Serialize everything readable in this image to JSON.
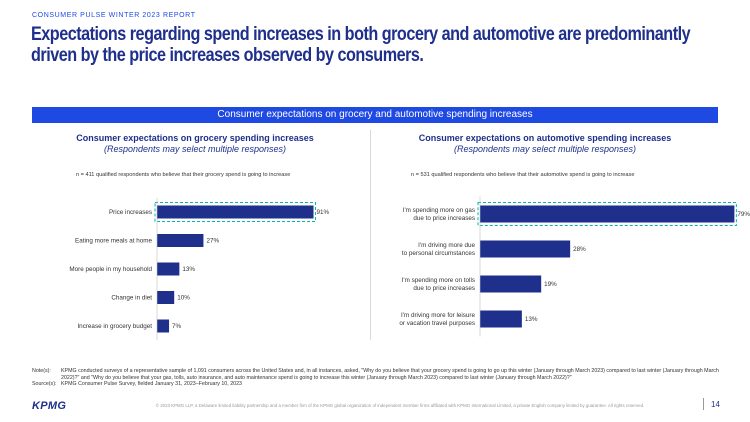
{
  "header": {
    "report_label": "CONSUMER PULSE WINTER 2023 REPORT",
    "title_line1": "Expectations regarding spend increases in both grocery and automotive are predominantly",
    "title_line2": "driven by the price increases observed by consumers."
  },
  "banner": "Consumer expectations on grocery and automotive spending increases",
  "colors": {
    "bar": "#1e2f8c",
    "accent": "#1e49e2",
    "highlight": "#00b8a9"
  },
  "chart_data": [
    {
      "type": "bar",
      "orientation": "horizontal",
      "title": "Consumer expectations on grocery spending increases",
      "subtitle": "(Respondents may select multiple responses)",
      "note": "n = 411 qualified respondents who believe that their grocery spend is going to increase",
      "categories": [
        "Price increases",
        "Eating more meals at home",
        "More people in my household",
        "Change in diet",
        "Increase in grocery budget"
      ],
      "values": [
        91,
        27,
        13,
        10,
        7
      ],
      "value_labels": [
        "91%",
        "27%",
        "13%",
        "10%",
        "7%"
      ],
      "highlighted": "Price increases"
    },
    {
      "type": "bar",
      "orientation": "horizontal",
      "title": "Consumer expectations on automotive spending increases",
      "subtitle": "(Respondents may select multiple responses)",
      "note": "n = 531 qualified respondents who believe that their automotive spend is going to increase",
      "categories": [
        [
          "I'm spending more on gas",
          "due to price increases"
        ],
        [
          "I'm driving more due",
          "to personal circumstances"
        ],
        [
          "I'm spending more on tolls",
          "due to price increases"
        ],
        [
          "I'm driving more for leisure",
          "or vacation travel purposes"
        ]
      ],
      "values": [
        79,
        28,
        19,
        13
      ],
      "value_labels": [
        "79%",
        "28%",
        "19%",
        "13%"
      ],
      "highlighted": "I'm spending more on gas due to price increases"
    }
  ],
  "footnotes": {
    "notes_label": "Note(s):",
    "notes_line1": "KPMG conducted surveys of a representative sample of 1,091 consumers across the United States and, in all instances, asked, \"Why do you believe that your grocery spend is going to go up this winter (January through March 2023) compared to last winter (January",
    "notes_line2": "through March 2022)?\" and \"Why do you believe that your gas, tolls, auto insurance, and auto maintenance spend is going to increase this winter (January through March 2023) compared to last winter (January through March 2022)?\"",
    "source_label": "Source(s):",
    "source_text": "KPMG Consumer Pulse Survey, fielded January 31, 2023–February 10, 2023"
  },
  "footer": {
    "logo": "KPMG",
    "copyright": "© 2023 KPMG LLP, a Delaware limited liability partnership and a member firm of the KPMG global organization of independent member firms affiliated with KPMG International Limited, a private English company limited by guarantee. All rights reserved.",
    "page_number": "14"
  }
}
